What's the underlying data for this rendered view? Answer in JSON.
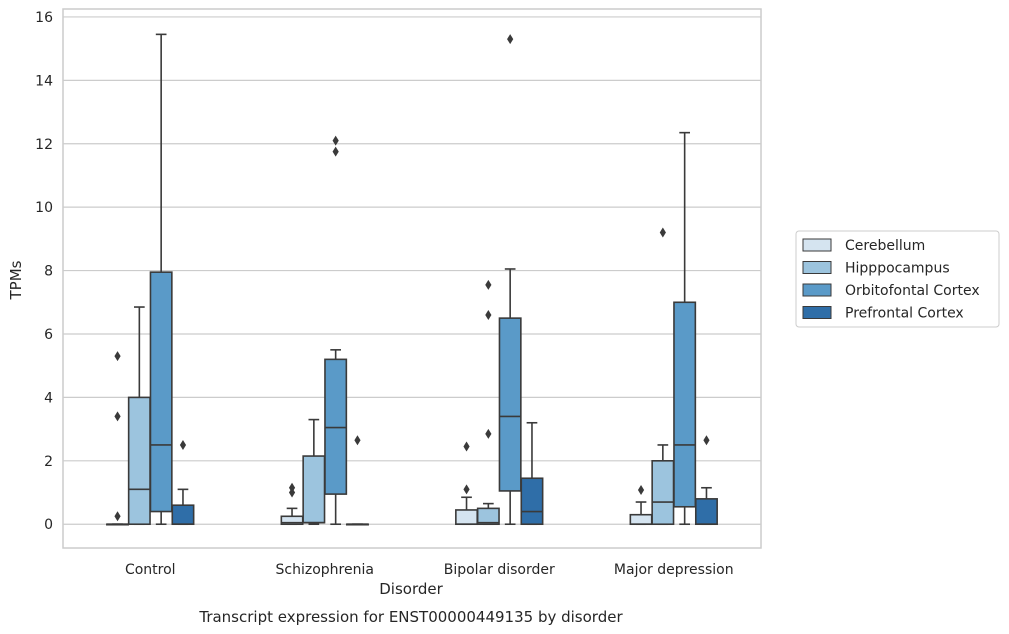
{
  "caption": "Transcript expression for ENST00000449135 by disorder",
  "chart_data": {
    "type": "box",
    "xlabel": "Disorder",
    "ylabel": "TPMs",
    "categories": [
      "Control",
      "Schizophrenia",
      "Bipolar disorder",
      "Major depression"
    ],
    "ylim": [
      -0.75,
      16.25
    ],
    "yticks": [
      0,
      2,
      4,
      6,
      8,
      10,
      12,
      14,
      16
    ],
    "grid": "horizontal",
    "legend_position": "right",
    "series": [
      {
        "name": "Cerebellum",
        "color": "#d5e4f0",
        "boxes": [
          {
            "whisker_low": 0,
            "q1": 0,
            "median": 0,
            "q3": 0,
            "whisker_high": 0,
            "outliers": [
              0.25,
              3.4,
              5.3
            ]
          },
          {
            "whisker_low": 0,
            "q1": 0,
            "median": 0.05,
            "q3": 0.25,
            "whisker_high": 0.5,
            "outliers": [
              1.0,
              1.15
            ]
          },
          {
            "whisker_low": 0,
            "q1": 0,
            "median": 0,
            "q3": 0.45,
            "whisker_high": 0.85,
            "outliers": [
              1.1,
              2.45
            ]
          },
          {
            "whisker_low": 0,
            "q1": 0,
            "median": 0,
            "q3": 0.3,
            "whisker_high": 0.7,
            "outliers": [
              1.08
            ]
          }
        ]
      },
      {
        "name": "Hipppocampus",
        "color": "#9cc4de",
        "boxes": [
          {
            "whisker_low": 0,
            "q1": 0,
            "median": 1.1,
            "q3": 4.0,
            "whisker_high": 6.85,
            "outliers": []
          },
          {
            "whisker_low": 0,
            "q1": 0.05,
            "median": 0.05,
            "q3": 2.15,
            "whisker_high": 3.3,
            "outliers": []
          },
          {
            "whisker_low": 0,
            "q1": 0,
            "median": 0.05,
            "q3": 0.5,
            "whisker_high": 0.65,
            "outliers": [
              2.85,
              6.6,
              7.55
            ]
          },
          {
            "whisker_low": 0,
            "q1": 0,
            "median": 0.7,
            "q3": 2.0,
            "whisker_high": 2.5,
            "outliers": [
              9.2
            ]
          }
        ]
      },
      {
        "name": "Orbitofontal Cortex",
        "color": "#5a9ac8",
        "boxes": [
          {
            "whisker_low": 0,
            "q1": 0.4,
            "median": 2.5,
            "q3": 7.95,
            "whisker_high": 15.45,
            "outliers": []
          },
          {
            "whisker_low": 0,
            "q1": 0.95,
            "median": 3.05,
            "q3": 5.2,
            "whisker_high": 5.5,
            "outliers": [
              11.75,
              12.1
            ]
          },
          {
            "whisker_low": 0,
            "q1": 1.05,
            "median": 3.4,
            "q3": 6.5,
            "whisker_high": 8.05,
            "outliers": [
              15.3
            ]
          },
          {
            "whisker_low": 0,
            "q1": 0.55,
            "median": 2.5,
            "q3": 7.0,
            "whisker_high": 12.35,
            "outliers": []
          }
        ]
      },
      {
        "name": "Prefrontal Cortex",
        "color": "#2f6ea8",
        "boxes": [
          {
            "whisker_low": 0,
            "q1": 0,
            "median": 0,
            "q3": 0.6,
            "whisker_high": 1.1,
            "outliers": [
              2.5
            ]
          },
          {
            "whisker_low": 0,
            "q1": 0,
            "median": 0,
            "q3": 0,
            "whisker_high": 0,
            "outliers": [
              2.65
            ]
          },
          {
            "whisker_low": 0,
            "q1": 0,
            "median": 0.4,
            "q3": 1.45,
            "whisker_high": 3.2,
            "outliers": []
          },
          {
            "whisker_low": 0,
            "q1": 0,
            "median": 0,
            "q3": 0.8,
            "whisker_high": 1.15,
            "outliers": [
              2.65
            ]
          }
        ]
      }
    ]
  }
}
